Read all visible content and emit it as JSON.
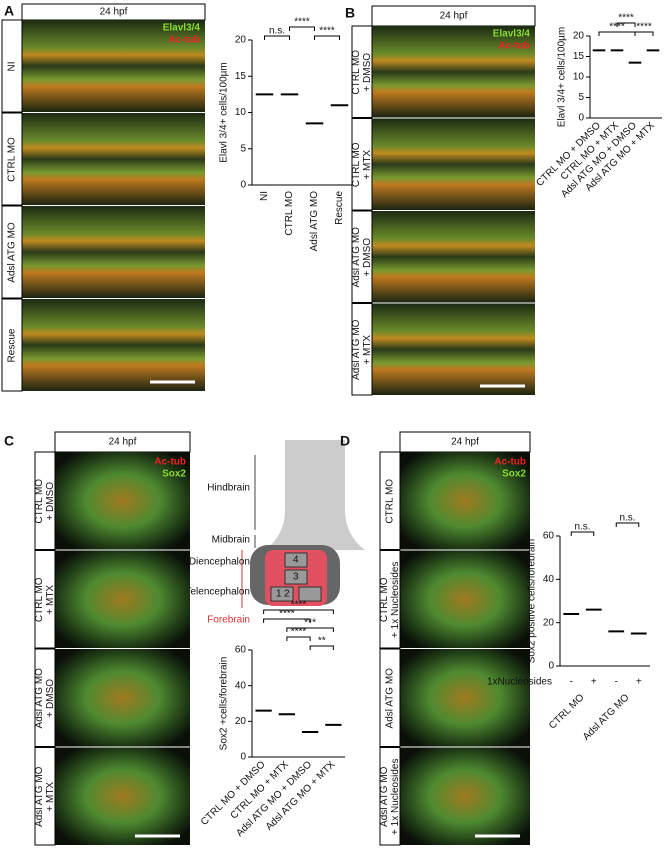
{
  "panels": [
    {
      "letter": "A",
      "time": "24 hpf",
      "legend": [
        "Elavl3/4",
        "Ac-tub"
      ],
      "rows": [
        [
          "NI"
        ],
        [
          "CTRL MO"
        ],
        [
          "Adsl ATG MO"
        ],
        [
          "Rescue"
        ]
      ]
    },
    {
      "letter": "B",
      "time": "24 hpf",
      "legend": [
        "Elavl3/4",
        "Ac-tub"
      ],
      "rows": [
        [
          "CTRL MO",
          "+ DMSO"
        ],
        [
          "CTRL MO",
          "+ MTX"
        ],
        [
          "Adsl ATG MO",
          "+ DMSO"
        ],
        [
          "Adsl ATG MO",
          "+ MTX"
        ]
      ]
    },
    {
      "letter": "C",
      "time": "24 hpf",
      "legend": [
        "Ac-tub",
        "Sox2"
      ],
      "rows": [
        [
          "CTRL MO",
          "+ DMSO"
        ],
        [
          "CTRL MO",
          "+ MTX"
        ],
        [
          "Adsl ATG MO",
          "+ DMSO"
        ],
        [
          "Adsl ATG MO",
          "+ MTX"
        ]
      ]
    },
    {
      "letter": "D",
      "time": "24 hpf",
      "legend": [
        "Ac-tub",
        "Sox2"
      ],
      "rows": [
        [
          "CTRL MO"
        ],
        [
          "CTRL MO",
          "+ 1x Nucleosides"
        ],
        [
          "Adsl ATG MO"
        ],
        [
          "Adsl ATG MO",
          "+ 1x Nucleosides"
        ]
      ]
    }
  ],
  "diagram": {
    "regions": [
      "Hindbrain",
      "Midbrain",
      "Diencephalon",
      "Telencephalon",
      "Forebrain"
    ],
    "numbers": [
      "1",
      "2",
      "3",
      "4"
    ]
  },
  "chart_data": [
    {
      "type": "dot",
      "ylabel": "Elavl 3/4+ cells/100µm",
      "categories": [
        "NI",
        "CTRL MO",
        "Adsl ATG MO",
        "Rescue"
      ],
      "values": [
        12.5,
        12.5,
        8.5,
        11
      ],
      "ylim": [
        0,
        20
      ],
      "yticks": [
        0,
        5,
        10,
        15,
        20
      ],
      "brackets": [
        {
          "from": 0,
          "to": 1,
          "label": "n.s."
        },
        {
          "from": 1,
          "to": 2,
          "label": "****"
        },
        {
          "from": 2,
          "to": 3,
          "label": "****"
        }
      ]
    },
    {
      "type": "dot",
      "ylabel": "Elavl 3/4+ cells/100µm",
      "categories": [
        "CTRL MO + DMSO",
        "CTRL MO + MTX",
        "Adsl ATG MO + DMSO",
        "Adsl ATG MO + MTX"
      ],
      "values": [
        16.5,
        16.5,
        13.5,
        16.5
      ],
      "ylim": [
        0,
        20
      ],
      "yticks": [
        0,
        5,
        10,
        15,
        20
      ],
      "brackets": [
        {
          "from": 0,
          "to": 2,
          "label": "****"
        },
        {
          "from": 1,
          "to": 2,
          "label": "****"
        },
        {
          "from": 2,
          "to": 3,
          "label": "****"
        }
      ]
    },
    {
      "type": "dot",
      "ylabel": "Sox2 +cells/forebrain",
      "categories": [
        "CTRL MO + DMSO",
        "CTRL MO + MTX",
        "Adsl ATG MO + DMSO",
        "Adsl ATG MO + MTX"
      ],
      "values": [
        26,
        24,
        14,
        18
      ],
      "ylim": [
        0,
        60
      ],
      "yticks": [
        0,
        20,
        40,
        60
      ],
      "brackets": [
        {
          "from": 0,
          "to": 3,
          "label": "****"
        },
        {
          "from": 0,
          "to": 2,
          "label": "****"
        },
        {
          "from": 1,
          "to": 3,
          "label": "***"
        },
        {
          "from": 1,
          "to": 2,
          "label": "****"
        },
        {
          "from": 2,
          "to": 3,
          "label": "**"
        }
      ]
    },
    {
      "type": "dot",
      "ylabel": "Sox2 positive cells/forebrain",
      "categories": [
        "-",
        "+",
        "-",
        "+"
      ],
      "values": [
        24,
        26,
        16,
        15
      ],
      "ylim": [
        0,
        60
      ],
      "yticks": [
        0,
        20,
        40,
        60
      ],
      "row_label": "1xNucleosides",
      "groups": [
        "CTRL MO",
        "Adsl ATG MO"
      ],
      "brackets": [
        {
          "from": 0,
          "to": 1,
          "label": "n.s."
        },
        {
          "from": 2,
          "to": 3,
          "label": "n.s."
        }
      ]
    }
  ]
}
